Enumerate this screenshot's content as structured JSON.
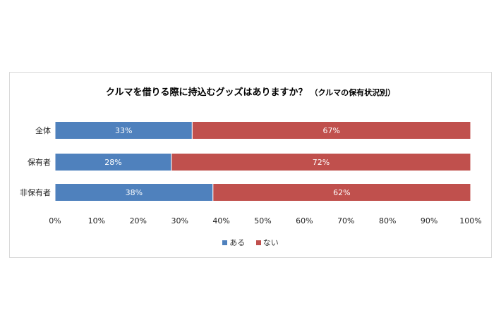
{
  "chart_data": {
    "type": "bar",
    "orientation": "horizontal",
    "stacked": true,
    "title": "クルマを借りる際に持込むグッズはありますか？",
    "subtitle": "（クルマの保有状況別）",
    "categories": [
      "全体",
      "保有者",
      "非保有者"
    ],
    "series": [
      {
        "name": "ある",
        "values": [
          33,
          28,
          38
        ],
        "labels": [
          "33%",
          "28%",
          "38%"
        ],
        "color": "#4f81bd"
      },
      {
        "name": "ない",
        "values": [
          67,
          72,
          62
        ],
        "labels": [
          "67%",
          "72%",
          "62%"
        ],
        "color": "#c0504d"
      }
    ],
    "xlim": [
      0,
      100
    ],
    "xticks": [
      {
        "value": 0,
        "label": "0%"
      },
      {
        "value": 10,
        "label": "10%"
      },
      {
        "value": 20,
        "label": "20%"
      },
      {
        "value": 30,
        "label": "30%"
      },
      {
        "value": 40,
        "label": "40%"
      },
      {
        "value": 50,
        "label": "50%"
      },
      {
        "value": 60,
        "label": "60%"
      },
      {
        "value": 70,
        "label": "70%"
      },
      {
        "value": 80,
        "label": "80%"
      },
      {
        "value": 90,
        "label": "90%"
      },
      {
        "value": 100,
        "label": "100%"
      }
    ],
    "grid": false,
    "legend_position": "bottom"
  }
}
